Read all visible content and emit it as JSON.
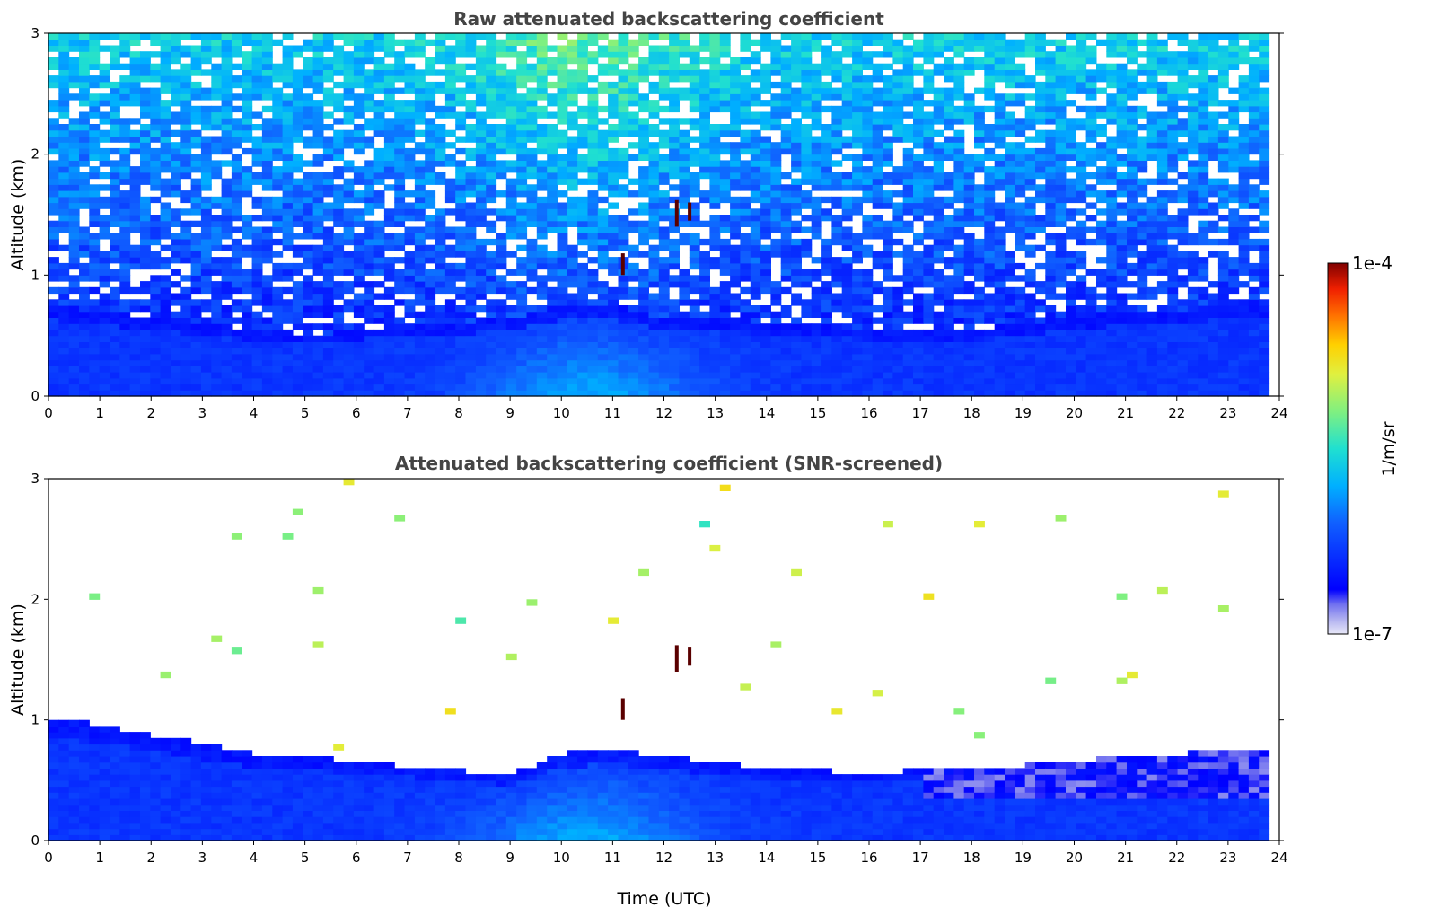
{
  "chart_data": [
    {
      "type": "heatmap",
      "title": "Raw attenuated backscattering coefficient",
      "xlabel": "",
      "ylabel": "Altitude (km)",
      "xlim": [
        0,
        24
      ],
      "ylim": [
        0,
        3
      ],
      "xticks": [
        "0",
        "1",
        "2",
        "3",
        "4",
        "5",
        "6",
        "7",
        "8",
        "9",
        "10",
        "11",
        "12",
        "13",
        "14",
        "15",
        "16",
        "17",
        "18",
        "19",
        "20",
        "21",
        "22",
        "23",
        "24"
      ],
      "yticks": [
        "0",
        "1",
        "2",
        "3"
      ],
      "data_extent_x": [
        0,
        23.8
      ],
      "noise": "strong noise above boundary layer, increasing with altitude and around midday",
      "boundary_layer_top_km": [
        [
          0,
          0.75
        ],
        [
          1,
          0.7
        ],
        [
          2,
          0.65
        ],
        [
          3,
          0.6
        ],
        [
          4,
          0.55
        ],
        [
          5,
          0.5
        ],
        [
          6,
          0.55
        ],
        [
          7,
          0.6
        ],
        [
          8,
          0.6
        ],
        [
          9,
          0.65
        ],
        [
          10,
          0.75
        ],
        [
          11,
          0.75
        ],
        [
          12,
          0.65
        ],
        [
          13,
          0.65
        ],
        [
          14,
          0.6
        ],
        [
          15,
          0.6
        ],
        [
          16,
          0.55
        ],
        [
          17,
          0.55
        ],
        [
          18,
          0.55
        ],
        [
          19,
          0.6
        ],
        [
          20,
          0.65
        ],
        [
          21,
          0.7
        ],
        [
          22,
          0.7
        ],
        [
          23,
          0.75
        ],
        [
          23.8,
          0.75
        ]
      ],
      "cloud_features": [
        {
          "time": 11.2,
          "base_km": 1.0,
          "top_km": 1.18
        },
        {
          "time": 12.25,
          "base_km": 1.4,
          "top_km": 1.62
        },
        {
          "time": 12.5,
          "base_km": 1.45,
          "top_km": 1.6
        }
      ]
    },
    {
      "type": "heatmap",
      "title": "Attenuated backscattering coefficient (SNR-screened)",
      "xlabel": "Time (UTC)",
      "ylabel": "Altitude (km)",
      "xlim": [
        0,
        24
      ],
      "ylim": [
        0,
        3
      ],
      "xticks": [
        "0",
        "1",
        "2",
        "3",
        "4",
        "5",
        "6",
        "7",
        "8",
        "9",
        "10",
        "11",
        "12",
        "13",
        "14",
        "15",
        "16",
        "17",
        "18",
        "19",
        "20",
        "21",
        "22",
        "23",
        "24"
      ],
      "yticks": [
        "0",
        "1",
        "2",
        "3"
      ],
      "data_extent_x": [
        0,
        23.8
      ],
      "noise": "screened; only boundary layer and cloud signal remain",
      "boundary_layer_top_km": [
        [
          0,
          1.0
        ],
        [
          0.5,
          1.0
        ],
        [
          1,
          0.95
        ],
        [
          2,
          0.88
        ],
        [
          3,
          0.8
        ],
        [
          4,
          0.72
        ],
        [
          5,
          0.7
        ],
        [
          6,
          0.65
        ],
        [
          7,
          0.62
        ],
        [
          8,
          0.58
        ],
        [
          9,
          0.55
        ],
        [
          9.5,
          0.62
        ],
        [
          10,
          0.72
        ],
        [
          11,
          0.75
        ],
        [
          12,
          0.7
        ],
        [
          13,
          0.65
        ],
        [
          14,
          0.6
        ],
        [
          15,
          0.58
        ],
        [
          16,
          0.56
        ],
        [
          17,
          0.58
        ],
        [
          18,
          0.6
        ],
        [
          19,
          0.62
        ],
        [
          20,
          0.66
        ],
        [
          21,
          0.7
        ],
        [
          22,
          0.72
        ],
        [
          23,
          0.74
        ],
        [
          23.8,
          0.76
        ]
      ],
      "cloud_features": [
        {
          "time": 11.2,
          "base_km": 1.0,
          "top_km": 1.18
        },
        {
          "time": 12.25,
          "base_km": 1.4,
          "top_km": 1.62
        },
        {
          "time": 12.5,
          "base_km": 1.45,
          "top_km": 1.6
        }
      ]
    }
  ],
  "colorbar": {
    "label": "1/m/sr",
    "min_label": "1e-7",
    "max_label": "1e-4",
    "scale": "log",
    "colormap": "jet",
    "min_value": 1e-07,
    "max_value": 0.0001
  }
}
